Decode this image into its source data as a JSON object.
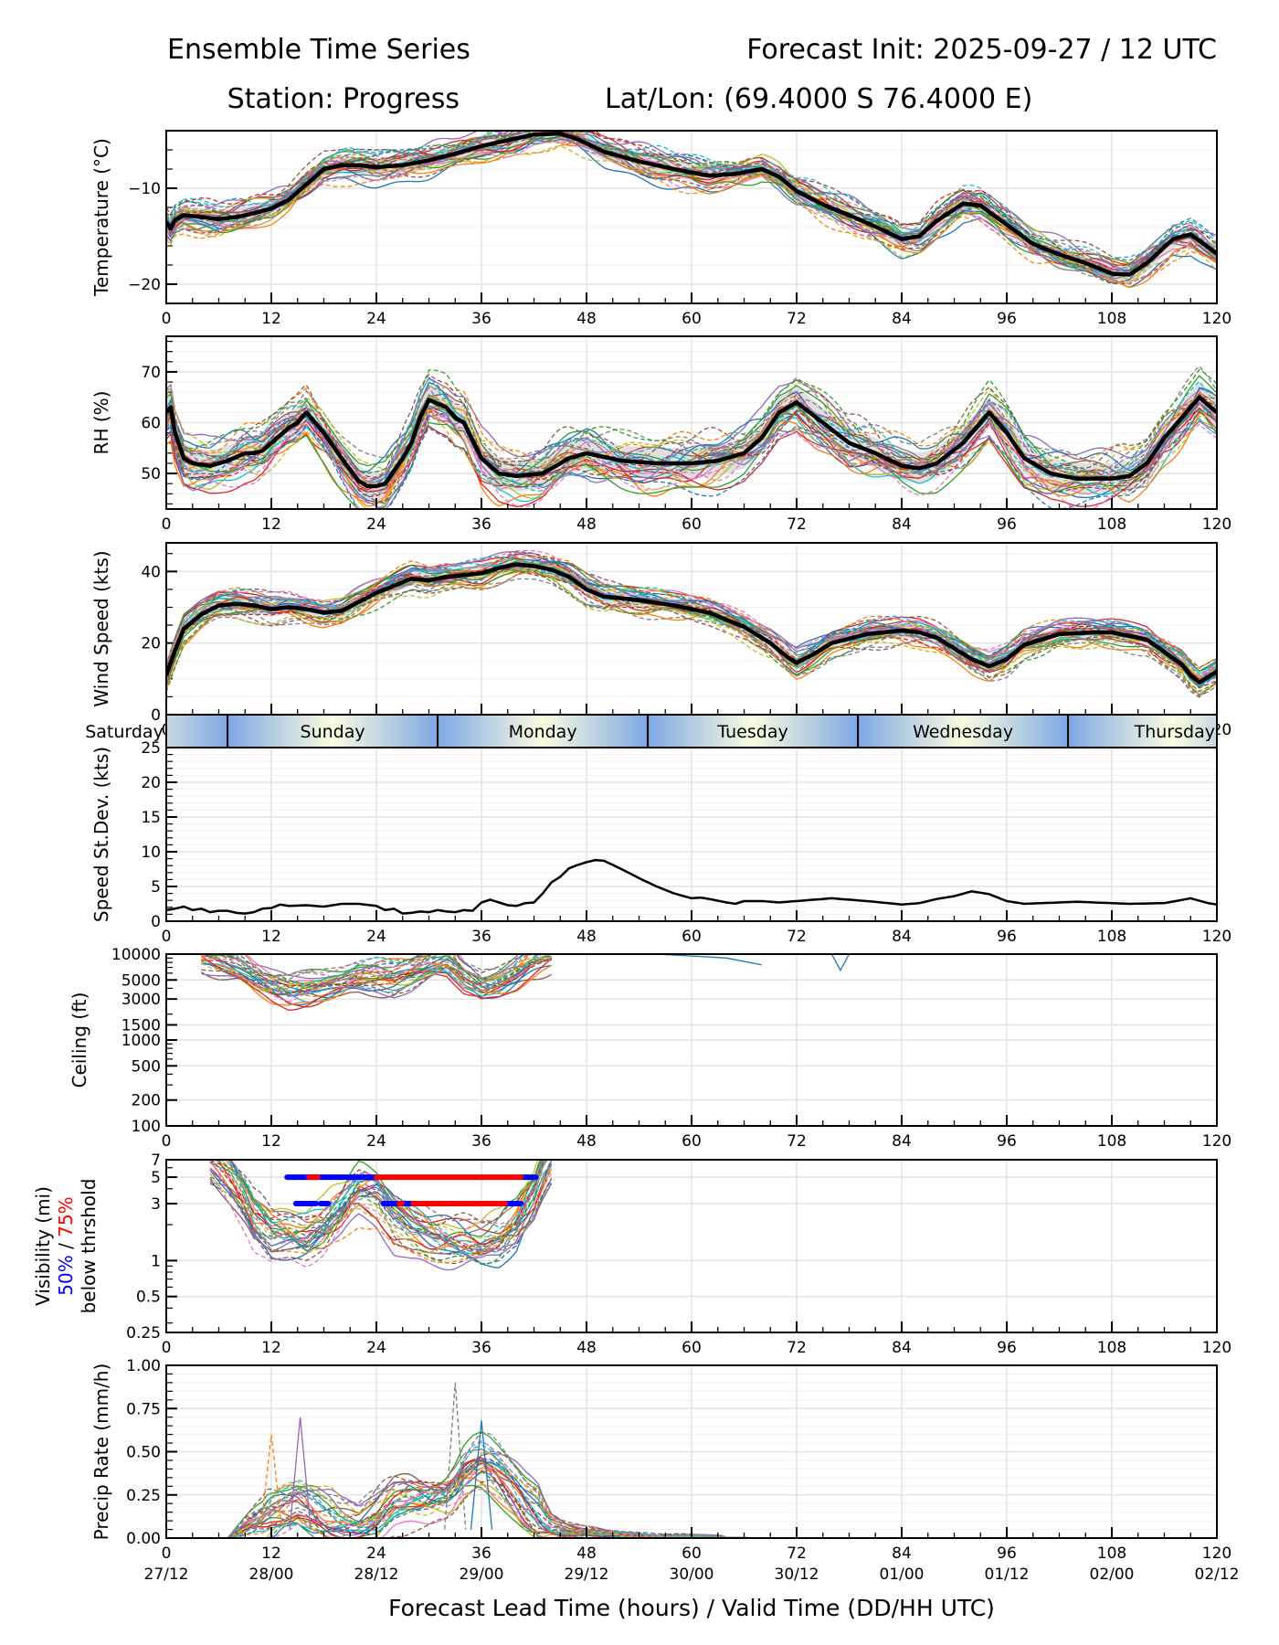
{
  "header": {
    "title_left": "Ensemble Time Series",
    "title_right": "Forecast Init: 2025-09-27 / 12 UTC",
    "station": "Station: Progress",
    "latlon": "Lat/Lon: (69.4000 S 76.4000 E)"
  },
  "xaxis": {
    "label": "Forecast Lead Time (hours) / Valid Time (DD/HH UTC)",
    "hours": [
      0,
      12,
      24,
      36,
      48,
      60,
      72,
      84,
      96,
      108,
      120
    ],
    "dates": [
      "27/12",
      "28/00",
      "28/12",
      "29/00",
      "29/12",
      "30/00",
      "30/12",
      "01/00",
      "01/12",
      "02/00",
      "02/12"
    ],
    "range": [
      0,
      120
    ]
  },
  "day_band": {
    "boundaries_hours": [
      7,
      31,
      55,
      79,
      103
    ],
    "labels": [
      "Saturday",
      "Sunday",
      "Monday",
      "Tuesday",
      "Wednesday",
      "Thursday"
    ],
    "colors": {
      "night": "#7ea8e4",
      "day": "#fbfce0"
    }
  },
  "member_colors": [
    "#1f77b4",
    "#ff7f0e",
    "#2ca02c",
    "#d62728",
    "#9467bd",
    "#8c564b",
    "#e377c2",
    "#7f7f7f",
    "#bcbd22",
    "#17becf"
  ],
  "chart_data": [
    {
      "id": "temperature",
      "type": "line",
      "ylabel": "Temperature (°C)",
      "ylim": [
        -22,
        -4
      ],
      "yticks": [
        -10,
        -20
      ],
      "ytick_labels": [
        "−10",
        "−20"
      ],
      "minor_step": 2,
      "scale": "linear",
      "mean": {
        "x": [
          0,
          0.5,
          1,
          2,
          4,
          6,
          8,
          10,
          12,
          14,
          16,
          18,
          20,
          22,
          24,
          27,
          30,
          33,
          36,
          39,
          42,
          45,
          47,
          50,
          54,
          58,
          62,
          65,
          68,
          70,
          72,
          75,
          78,
          81,
          84,
          86,
          88,
          91,
          93,
          96,
          99,
          102,
          105,
          108,
          110,
          112,
          115,
          117,
          120
        ],
        "y": [
          -13.5,
          -14.2,
          -13.3,
          -12.8,
          -13.0,
          -13.2,
          -13.0,
          -12.6,
          -12.1,
          -11.2,
          -9.6,
          -8.0,
          -7.6,
          -7.6,
          -7.8,
          -7.6,
          -7.1,
          -6.4,
          -5.6,
          -5.0,
          -4.4,
          -4.3,
          -4.9,
          -6.2,
          -7.2,
          -8.0,
          -8.7,
          -8.5,
          -8.0,
          -8.8,
          -10.3,
          -11.7,
          -12.8,
          -14.0,
          -15.3,
          -15.0,
          -13.4,
          -11.6,
          -11.8,
          -13.8,
          -15.8,
          -16.9,
          -17.8,
          -18.9,
          -19.0,
          -17.8,
          -15.3,
          -14.8,
          -16.8
        ]
      },
      "spread": 0.9,
      "member_spread": 2.0
    },
    {
      "id": "rh",
      "type": "line",
      "ylabel": "RH (%)",
      "ylim": [
        43,
        77
      ],
      "yticks": [
        50,
        60,
        70
      ],
      "ytick_labels": [
        "50",
        "60",
        "70"
      ],
      "minor_step": 2,
      "scale": "linear",
      "mean": {
        "x": [
          0,
          0.5,
          1,
          2,
          3,
          5,
          7,
          9,
          10,
          11,
          12,
          14,
          15,
          16,
          18,
          20,
          22,
          23,
          24,
          25,
          27,
          28,
          29,
          30,
          32,
          33,
          34,
          36,
          38,
          40,
          43,
          46,
          48,
          52,
          56,
          60,
          63,
          66,
          68,
          70,
          72,
          75,
          78,
          81,
          84,
          86,
          88,
          91,
          93,
          94,
          96,
          98,
          101,
          104,
          108,
          110,
          112,
          114,
          116,
          118,
          120
        ],
        "y": [
          62,
          63,
          58,
          53,
          52,
          51.5,
          52.5,
          54,
          54,
          54.5,
          56,
          59,
          60,
          62,
          58,
          53,
          48.5,
          47.5,
          47.5,
          48,
          53,
          56,
          61,
          64.5,
          63,
          61,
          60,
          53,
          50,
          49.5,
          50,
          53,
          54,
          52.5,
          52,
          52,
          52.5,
          54,
          57,
          62,
          64,
          60,
          56,
          54,
          51.5,
          51,
          52,
          56,
          60,
          62,
          58,
          53,
          50,
          49,
          49,
          49.5,
          52,
          57,
          61,
          65,
          62
        ]
      },
      "spread": 3.0,
      "member_spread": 6.0
    },
    {
      "id": "wind",
      "type": "line",
      "ylabel": "Wind Speed (kts)",
      "ylim": [
        0,
        48
      ],
      "yticks": [
        0,
        20,
        40
      ],
      "ytick_labels": [
        "0",
        "20",
        "40"
      ],
      "minor_step": 5,
      "scale": "linear",
      "mean": {
        "x": [
          0,
          1,
          2,
          4,
          6,
          8,
          10,
          12,
          14,
          16,
          18,
          20,
          22,
          24,
          26,
          28,
          30,
          32,
          34,
          36,
          38,
          40,
          42,
          44,
          46,
          48,
          50,
          54,
          58,
          62,
          66,
          69,
          71,
          72,
          74,
          76,
          80,
          84,
          86,
          88,
          92,
          94,
          96,
          98,
          102,
          106,
          108,
          112,
          116,
          117,
          118,
          120
        ],
        "y": [
          11,
          18,
          24,
          28,
          30.5,
          31,
          30.5,
          29.5,
          30,
          29.5,
          28.5,
          29,
          31.5,
          34,
          36,
          38,
          37.5,
          38.5,
          39,
          39.5,
          41,
          42,
          41.5,
          40.5,
          38.5,
          35,
          33,
          32,
          30.5,
          28.5,
          24.5,
          20,
          16,
          14.5,
          17,
          20,
          22.5,
          23.5,
          23,
          21.5,
          15.5,
          13.5,
          15.5,
          19.5,
          22.5,
          23,
          23,
          21,
          14,
          11,
          9,
          12
        ]
      },
      "spread": 2.0,
      "member_spread": 4.5
    },
    {
      "id": "speed_stdev",
      "type": "line",
      "ylabel": "Speed St.Dev. (kts)",
      "ylim": [
        0,
        25
      ],
      "yticks": [
        0,
        5,
        10,
        15,
        20,
        25
      ],
      "ytick_labels": [
        "0",
        "5",
        "10",
        "15",
        "20",
        "25"
      ],
      "minor_step": 1,
      "scale": "linear",
      "mean": {
        "x": [
          0,
          1,
          2,
          3,
          4,
          5,
          6,
          7,
          8,
          9,
          10,
          11,
          12,
          13,
          14,
          16,
          18,
          20,
          22,
          24,
          25,
          26,
          27,
          28,
          29,
          30,
          31,
          32,
          33,
          34,
          35,
          36,
          37,
          38,
          39,
          40,
          41,
          42,
          43,
          44,
          45,
          46,
          47,
          48,
          49,
          50,
          52,
          54,
          56,
          58,
          60,
          61,
          62,
          64,
          65,
          66,
          68,
          70,
          72,
          76,
          80,
          84,
          86,
          88,
          90,
          92,
          94,
          96,
          98,
          104,
          110,
          114,
          117,
          119,
          120
        ],
        "y": [
          1.6,
          1.8,
          2.1,
          1.6,
          1.8,
          1.3,
          1.5,
          1.5,
          1.2,
          1.1,
          1.3,
          1.8,
          1.9,
          2.4,
          2.2,
          2.3,
          2.1,
          2.5,
          2.5,
          2.2,
          1.6,
          1.8,
          1.1,
          1.2,
          1.4,
          1.3,
          1.6,
          1.4,
          1.3,
          1.6,
          1.5,
          2.7,
          3.1,
          2.7,
          2.3,
          2.2,
          2.6,
          2.7,
          4.0,
          5.6,
          6.4,
          7.6,
          8.1,
          8.5,
          8.8,
          8.7,
          7.5,
          6.2,
          5.0,
          4.0,
          3.3,
          3.4,
          3.2,
          2.7,
          2.5,
          2.9,
          2.9,
          2.7,
          2.9,
          3.3,
          2.9,
          2.4,
          2.6,
          3.2,
          3.6,
          4.3,
          3.9,
          2.9,
          2.5,
          2.8,
          2.5,
          2.6,
          3.3,
          2.6,
          2.4
        ]
      }
    },
    {
      "id": "ceiling",
      "type": "line",
      "ylabel": "Ceiling (ft)",
      "ylim": [
        100,
        10000
      ],
      "yticks": [
        100,
        200,
        500,
        1000,
        1500,
        3000,
        5000,
        10000
      ],
      "ytick_labels": [
        "100",
        "200",
        "500",
        "1000",
        "1500",
        "3000",
        "5000",
        "10000"
      ],
      "scale": "log",
      "mean": {
        "x": [
          4,
          8,
          10,
          12,
          14,
          16,
          18,
          20,
          22,
          24,
          26,
          28,
          30,
          32,
          34,
          36,
          38,
          40,
          42,
          44
        ],
        "y": [
          10000,
          7000,
          5200,
          4200,
          3700,
          3900,
          4300,
          4700,
          5400,
          5600,
          5300,
          6000,
          7500,
          8500,
          5500,
          4300,
          4800,
          6000,
          8200,
          10000
        ]
      },
      "member_spread": 0.45,
      "isolated_dips": [
        {
          "x": [
            56,
            60,
            64,
            68
          ],
          "y": [
            10000,
            9500,
            9000,
            7500
          ]
        },
        {
          "x": [
            76,
            77,
            78
          ],
          "y": [
            10000,
            6500,
            10000
          ]
        }
      ]
    },
    {
      "id": "visibility",
      "type": "line",
      "ylabel_lines": [
        "Visibility (mi)",
        "50% / 75%",
        "below thrshold"
      ],
      "ylim": [
        0.25,
        7
      ],
      "yticks": [
        0.25,
        0.5,
        1,
        3,
        5,
        7
      ],
      "ytick_labels": [
        "0.25",
        "0.5",
        "1",
        "3",
        "5",
        "7"
      ],
      "scale": "log",
      "mean": {
        "x": [
          5,
          8,
          10,
          12,
          14,
          16,
          18,
          20,
          22,
          24,
          26,
          28,
          30,
          32,
          34,
          36,
          38,
          40,
          42,
          44
        ],
        "y": [
          7,
          4,
          2.2,
          1.6,
          1.6,
          1.5,
          1.8,
          2.5,
          3.6,
          3.4,
          2.2,
          1.8,
          1.6,
          1.5,
          1.4,
          1.3,
          1.4,
          1.8,
          3.2,
          7
        ]
      },
      "member_spread": 0.55,
      "threshold_bars": [
        {
          "threshold": 5,
          "segments": [
            {
              "from": 13.8,
              "to": 24,
              "level": "50%"
            },
            {
              "from": 16.3,
              "to": 16.6,
              "level": "75%"
            },
            {
              "from": 16.9,
              "to": 17.3,
              "level": "75%"
            },
            {
              "from": 24,
              "to": 40.5,
              "level": "75%"
            },
            {
              "from": 40.5,
              "to": 42.2,
              "level": "50%"
            }
          ]
        },
        {
          "threshold": 3,
          "segments": [
            {
              "from": 14.8,
              "to": 17.1,
              "level": "50%"
            },
            {
              "from": 17.6,
              "to": 18.5,
              "level": "50%"
            },
            {
              "from": 24.8,
              "to": 28.2,
              "level": "50%"
            },
            {
              "from": 26.6,
              "to": 26.9,
              "level": "75%"
            },
            {
              "from": 28.2,
              "to": 32.5,
              "level": "75%"
            },
            {
              "from": 32.5,
              "to": 32.9,
              "level": "50%"
            },
            {
              "from": 32.9,
              "to": 38.7,
              "level": "75%"
            },
            {
              "from": 38.7,
              "to": 40.5,
              "level": "50%"
            }
          ]
        }
      ],
      "legend": {
        "p50": "50%",
        "p75": "75%",
        "p50_color": "#0000ff",
        "p75_color": "#ff0000"
      }
    },
    {
      "id": "precip",
      "type": "line",
      "ylabel": "Precip Rate (mm/h)",
      "ylim": [
        0,
        1.0
      ],
      "yticks": [
        0,
        0.25,
        0.5,
        0.75,
        1.0
      ],
      "ytick_labels": [
        "0.00",
        "0.25",
        "0.50",
        "0.75",
        "1.00"
      ],
      "minor_step": 0.05,
      "scale": "linear",
      "mean": {
        "x": [
          0,
          7,
          9,
          11,
          12,
          13,
          14,
          15,
          16,
          17,
          18,
          20,
          22,
          24,
          26,
          28,
          30,
          32,
          33,
          34,
          35,
          36,
          37,
          38,
          39,
          40,
          41,
          42,
          43,
          44,
          46,
          48,
          52,
          56,
          60,
          64,
          68,
          70
        ],
        "y": [
          0,
          0,
          0.05,
          0.1,
          0.15,
          0.18,
          0.2,
          0.22,
          0.2,
          0.17,
          0.14,
          0.1,
          0.08,
          0.12,
          0.2,
          0.22,
          0.22,
          0.25,
          0.3,
          0.38,
          0.42,
          0.44,
          0.42,
          0.38,
          0.33,
          0.27,
          0.2,
          0.15,
          0.1,
          0.06,
          0.04,
          0.03,
          0.02,
          0.01,
          0.01,
          0.005,
          0,
          0
        ]
      },
      "member_spread": 0.18,
      "peaks": [
        {
          "x": 12,
          "y": 0.6
        },
        {
          "x": 15.3,
          "y": 0.7
        },
        {
          "x": 33,
          "y": 0.9
        },
        {
          "x": 36,
          "y": 0.68
        }
      ]
    }
  ]
}
